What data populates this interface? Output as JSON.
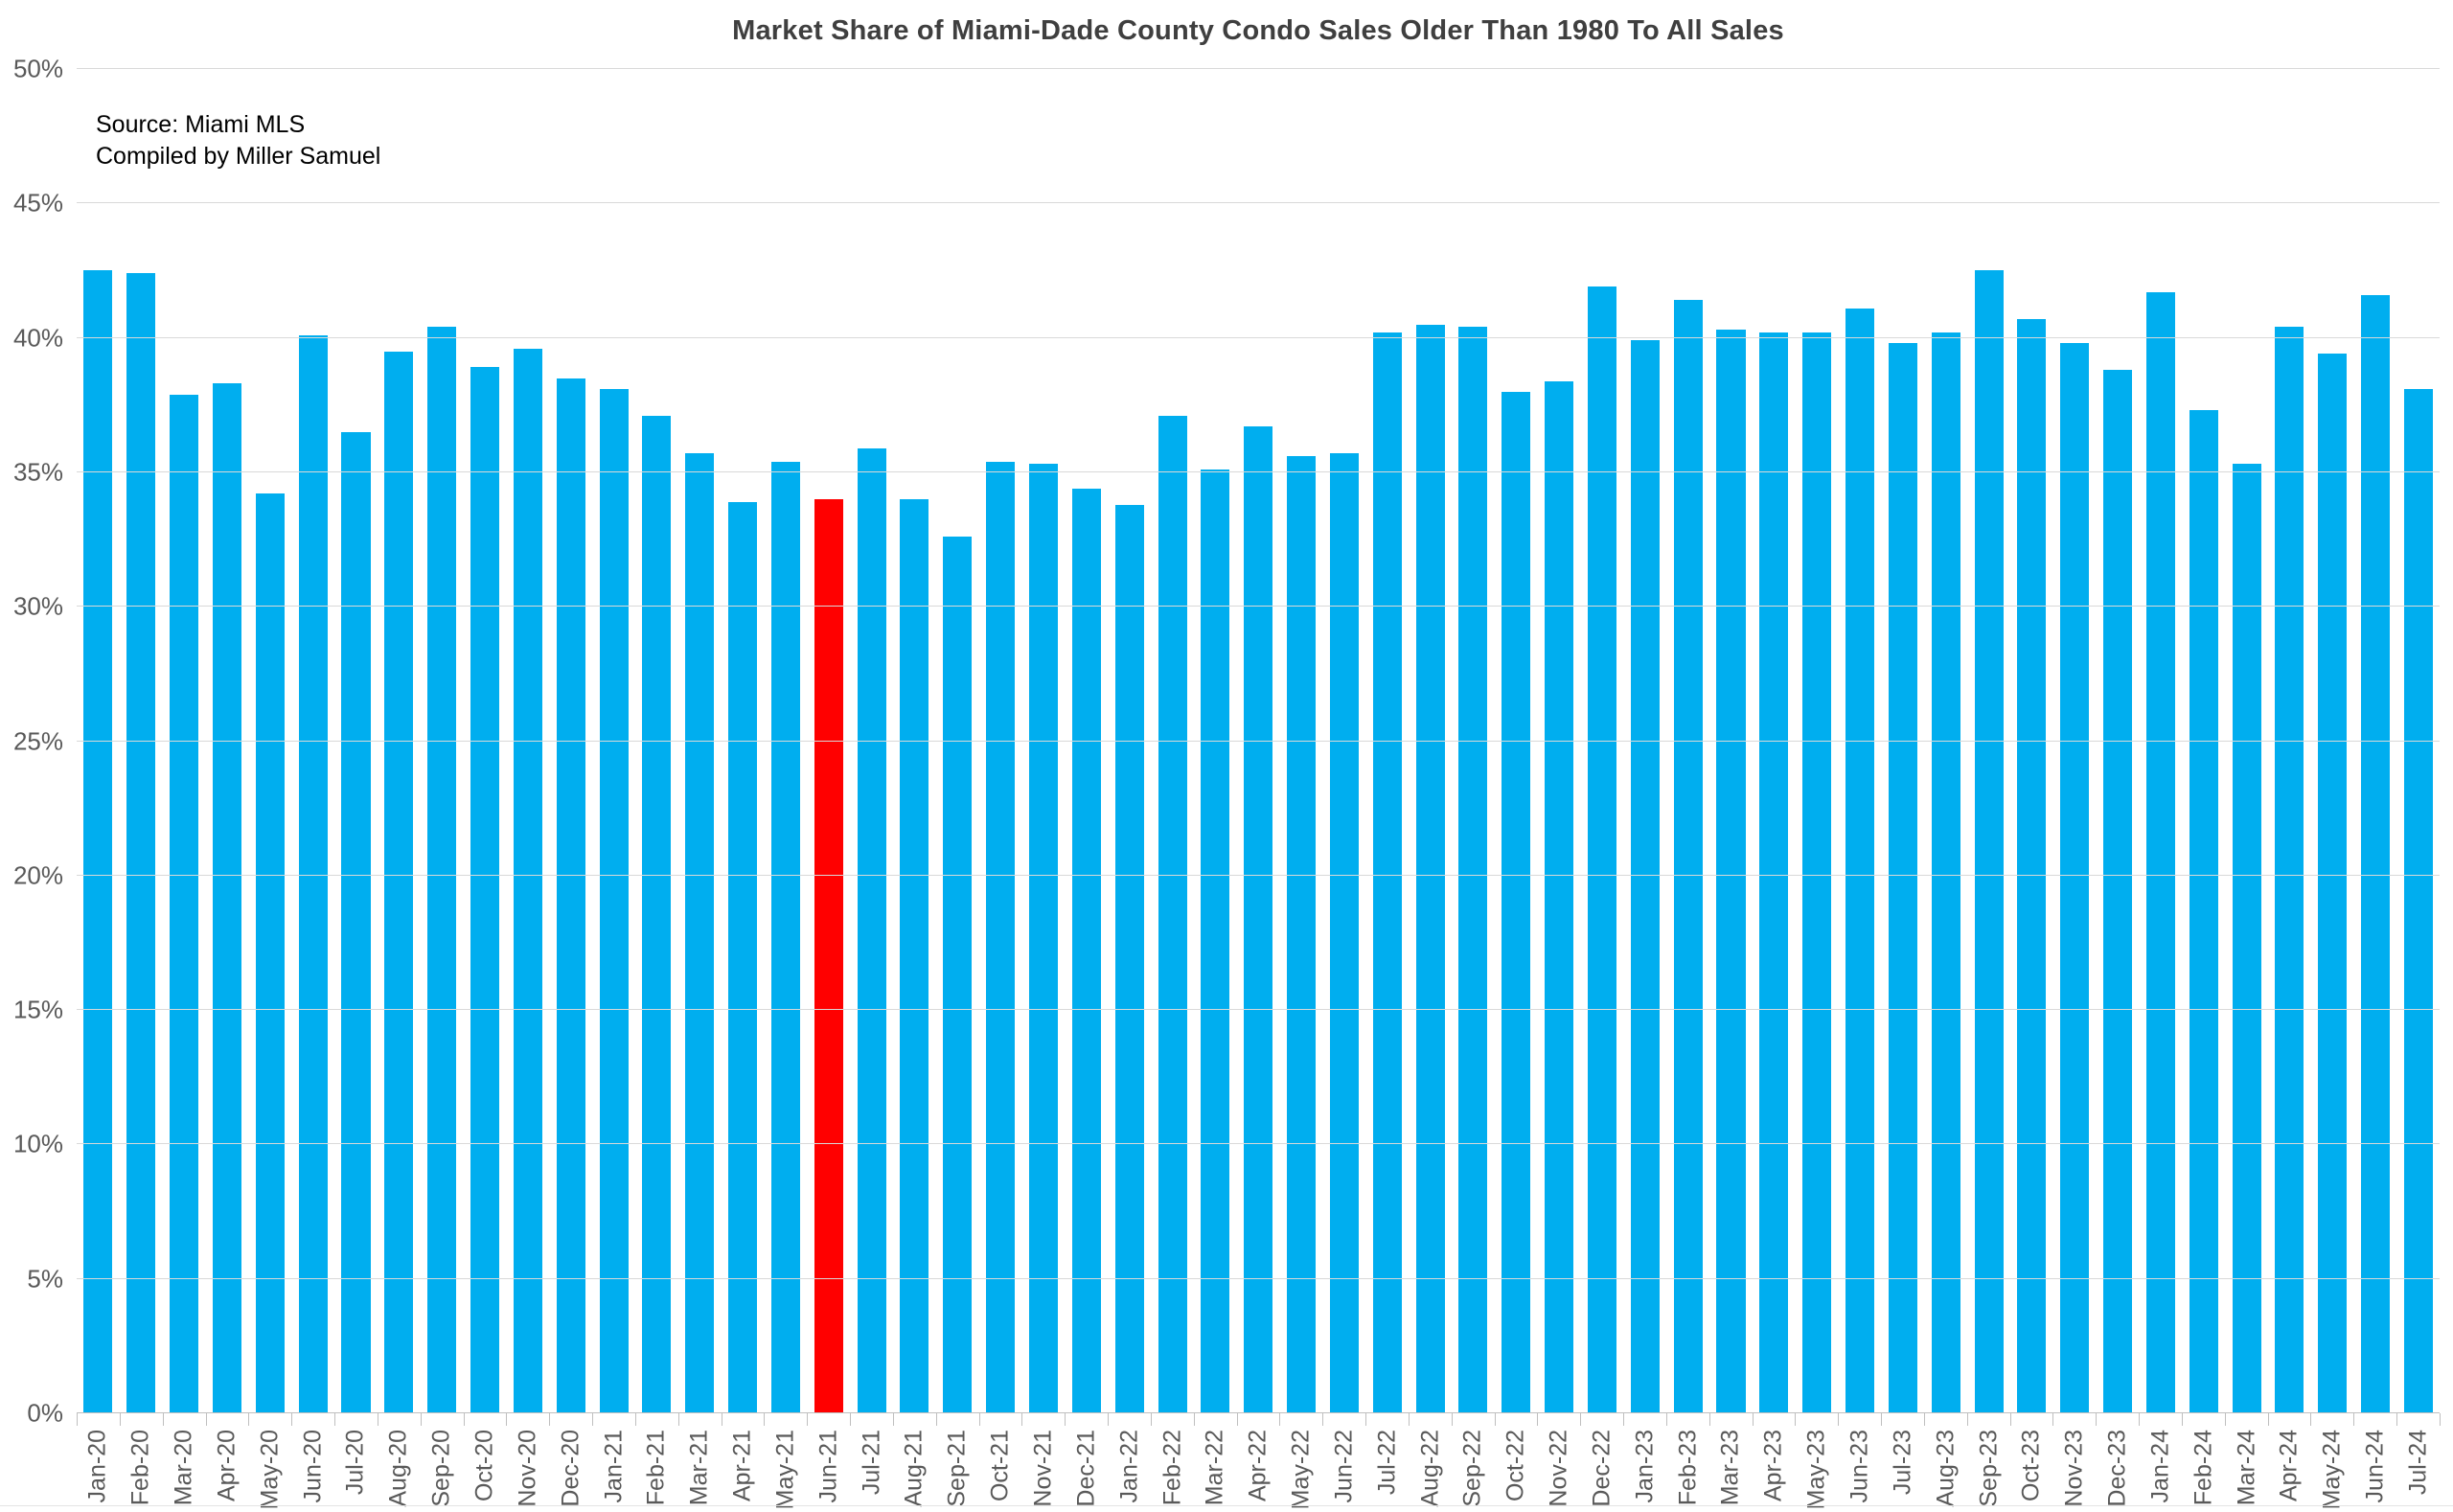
{
  "title": "Market Share of Miami-Dade County Condo Sales Older Than 1980 To All Sales",
  "source_note": {
    "line1": "Source: Miami MLS",
    "line2": "Compiled by Miller Samuel"
  },
  "chart_data": {
    "type": "bar",
    "title": "Market Share of Miami-Dade County Condo Sales Older Than 1980 To All Sales",
    "xlabel": "",
    "ylabel": "",
    "ylim": [
      0,
      50
    ],
    "ytick_step": 5,
    "ytick_labels": [
      "0%",
      "5%",
      "10%",
      "15%",
      "20%",
      "25%",
      "30%",
      "35%",
      "40%",
      "45%",
      "50%"
    ],
    "grid": true,
    "legend": "none",
    "bar_color": "#00AEEF",
    "highlight_color": "#FF0000",
    "highlight_index": 17,
    "highlight_category": "Jun-21",
    "categories": [
      "Jan-20",
      "Feb-20",
      "Mar-20",
      "Apr-20",
      "May-20",
      "Jun-20",
      "Jul-20",
      "Aug-20",
      "Sep-20",
      "Oct-20",
      "Nov-20",
      "Dec-20",
      "Jan-21",
      "Feb-21",
      "Mar-21",
      "Apr-21",
      "May-21",
      "Jun-21",
      "Jul-21",
      "Aug-21",
      "Sep-21",
      "Oct-21",
      "Nov-21",
      "Dec-21",
      "Jan-22",
      "Feb-22",
      "Mar-22",
      "Apr-22",
      "May-22",
      "Jun-22",
      "Jul-22",
      "Aug-22",
      "Sep-22",
      "Oct-22",
      "Nov-22",
      "Dec-22",
      "Jan-23",
      "Feb-23",
      "Mar-23",
      "Apr-23",
      "May-23",
      "Jun-23",
      "Jul-23",
      "Aug-23",
      "Sep-23",
      "Oct-23",
      "Nov-23",
      "Dec-23",
      "Jan-24",
      "Feb-24",
      "Mar-24",
      "Apr-24",
      "May-24",
      "Jun-24",
      "Jul-24"
    ],
    "values": [
      42.5,
      42.4,
      37.9,
      38.3,
      34.2,
      40.1,
      36.5,
      39.5,
      40.4,
      38.9,
      39.6,
      38.5,
      38.1,
      37.1,
      35.7,
      33.9,
      35.4,
      34.0,
      35.9,
      34.0,
      32.6,
      35.4,
      35.3,
      34.4,
      33.8,
      37.1,
      35.1,
      36.7,
      35.6,
      35.7,
      40.2,
      40.5,
      40.4,
      38.0,
      38.4,
      41.9,
      39.9,
      41.4,
      40.3,
      40.2,
      40.2,
      41.1,
      39.8,
      40.2,
      42.5,
      40.7,
      39.8,
      38.8,
      41.7,
      37.3,
      35.3,
      40.4,
      39.4,
      41.6,
      38.1
    ]
  },
  "colors": {
    "background": "#FFFFFF",
    "title_text": "#3F3F3F",
    "axis_label_text": "#595959",
    "source_text": "#000000",
    "gridline": "#D9D9D9",
    "axis_line": "#BFBFBF"
  }
}
